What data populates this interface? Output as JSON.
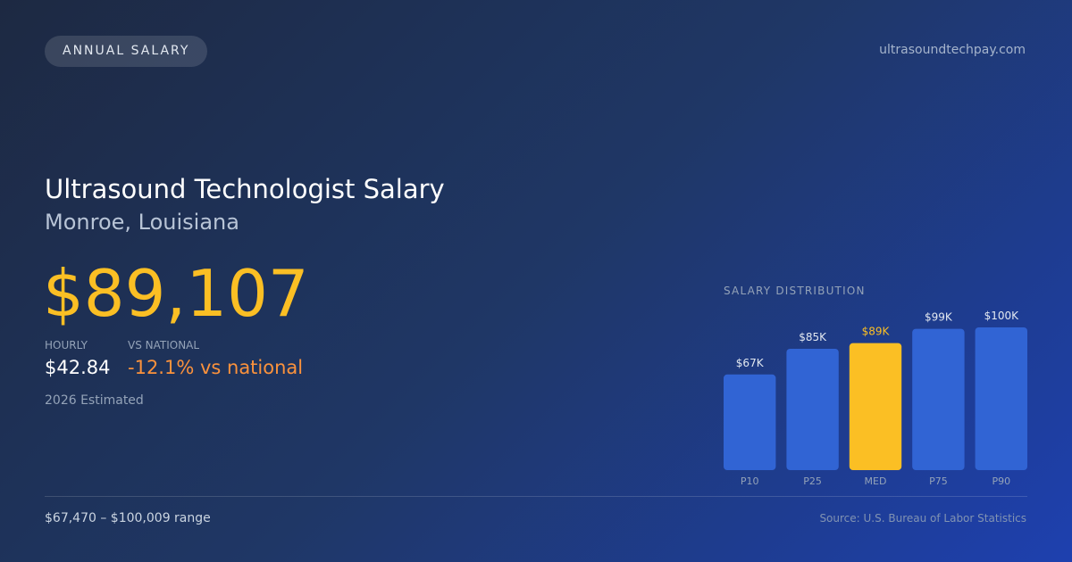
{
  "badge": "ANNUAL SALARY",
  "site": "ultrasoundtechpay.com",
  "title": "Ultrasound Technologist Salary",
  "location": "Monroe, Louisiana",
  "salary": "$89,107",
  "hourly": {
    "label": "HOURLY",
    "value": "$42.84"
  },
  "vs_national": {
    "label": "VS NATIONAL",
    "value": "-12.1% vs national"
  },
  "estimate": "2026 Estimated",
  "range": "$67,470 – $100,009 range",
  "source": "Source: U.S. Bureau of Labor Statistics",
  "chart_data": {
    "type": "bar",
    "title": "SALARY DISTRIBUTION",
    "categories": [
      "P10",
      "P25",
      "MED",
      "P75",
      "P90"
    ],
    "values": [
      67,
      85,
      89,
      99,
      100
    ],
    "value_labels": [
      "$67K",
      "$85K",
      "$89K",
      "$99K",
      "$100K"
    ],
    "colors": [
      "#3164d4",
      "#3164d4",
      "#fbbf24",
      "#3164d4",
      "#3164d4"
    ],
    "label_colors": [
      "#e2e8f0",
      "#e2e8f0",
      "#fbbf24",
      "#e2e8f0",
      "#e2e8f0"
    ],
    "ylim": [
      0,
      100
    ]
  }
}
